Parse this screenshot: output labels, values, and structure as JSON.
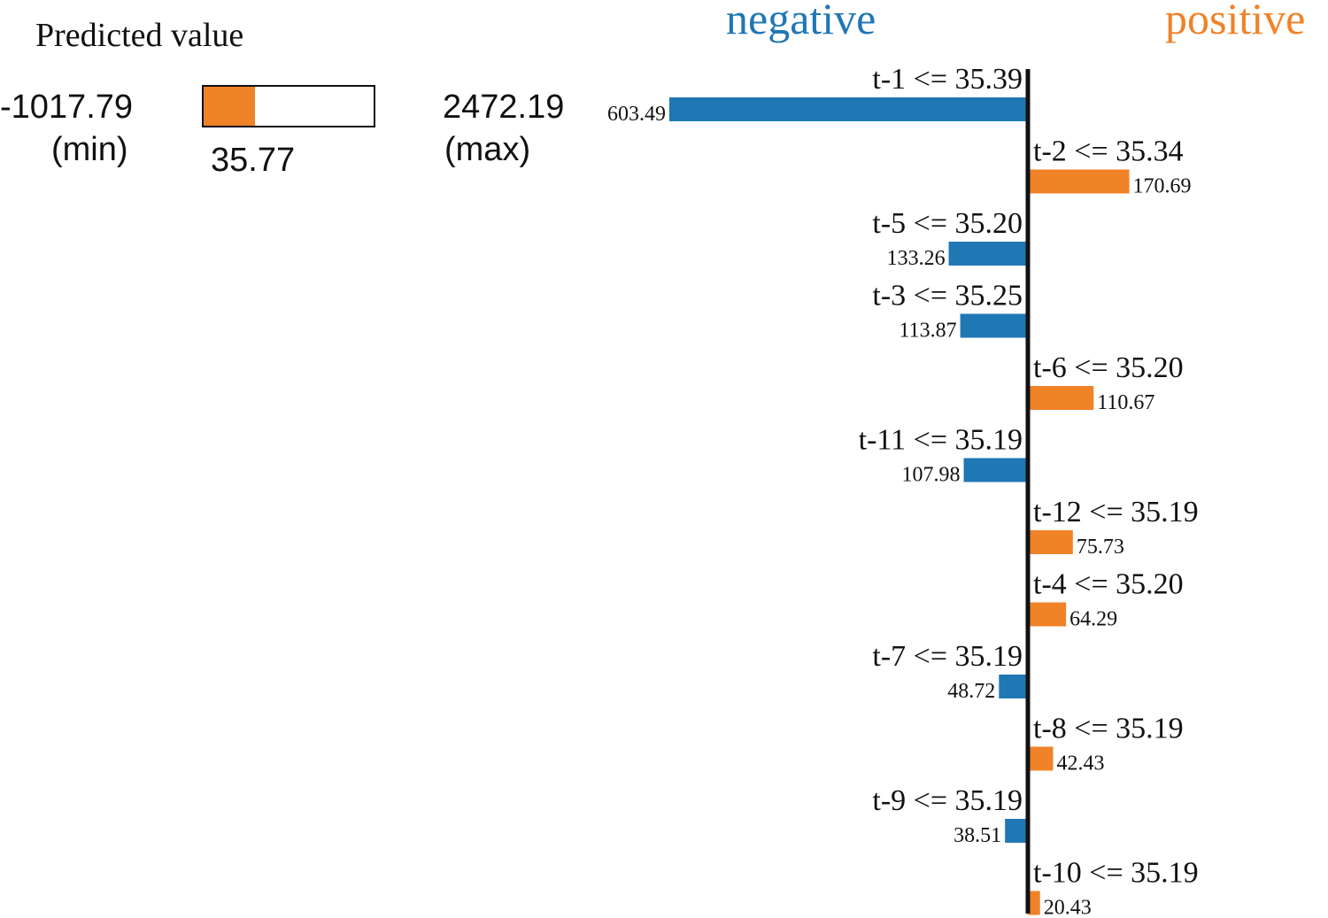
{
  "prediction": {
    "title": "Predicted value",
    "min": -1017.79,
    "min_text": "-1017.79",
    "min_label": "(min)",
    "max": 2472.19,
    "max_text": "2472.19",
    "max_label": "(max)",
    "value": 35.77,
    "value_text": "35.77",
    "fill_color": "#f08228"
  },
  "chart_data": {
    "type": "bar",
    "orientation": "horizontal",
    "negative_label": "negative",
    "positive_label": "positive",
    "negative_color": "#1f77b4",
    "positive_color": "#f08228",
    "items": [
      {
        "feature": "t-1 <= 35.39",
        "sign": "negative",
        "value": 603.49,
        "value_text": "603.49"
      },
      {
        "feature": "t-2 <= 35.34",
        "sign": "positive",
        "value": 170.69,
        "value_text": "170.69"
      },
      {
        "feature": "t-5 <= 35.20",
        "sign": "negative",
        "value": 133.26,
        "value_text": "133.26"
      },
      {
        "feature": "t-3 <= 35.25",
        "sign": "negative",
        "value": 113.87,
        "value_text": "113.87"
      },
      {
        "feature": "t-6 <= 35.20",
        "sign": "positive",
        "value": 110.67,
        "value_text": "110.67"
      },
      {
        "feature": "t-11 <= 35.19",
        "sign": "negative",
        "value": 107.98,
        "value_text": "107.98"
      },
      {
        "feature": "t-12 <= 35.19",
        "sign": "positive",
        "value": 75.73,
        "value_text": "75.73"
      },
      {
        "feature": "t-4 <= 35.20",
        "sign": "positive",
        "value": 64.29,
        "value_text": "64.29"
      },
      {
        "feature": "t-7 <= 35.19",
        "sign": "negative",
        "value": 48.72,
        "value_text": "48.72"
      },
      {
        "feature": "t-8 <= 35.19",
        "sign": "positive",
        "value": 42.43,
        "value_text": "42.43"
      },
      {
        "feature": "t-9 <= 35.19",
        "sign": "negative",
        "value": 38.51,
        "value_text": "38.51"
      },
      {
        "feature": "t-10 <= 35.19",
        "sign": "positive",
        "value": 20.43,
        "value_text": "20.43"
      }
    ]
  }
}
